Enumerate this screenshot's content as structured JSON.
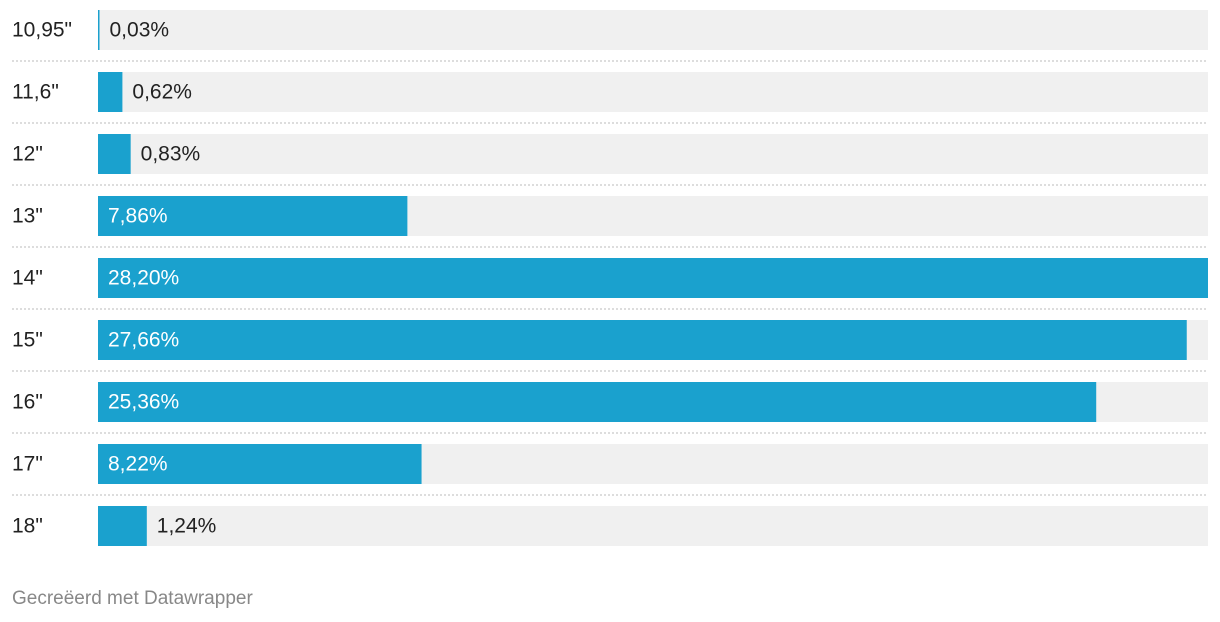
{
  "chart_data": {
    "type": "bar",
    "orientation": "horizontal",
    "categories": [
      "10,95\"",
      "11,6\"",
      "12\"",
      "13\"",
      "14\"",
      "15\"",
      "16\"",
      "17\"",
      "18\""
    ],
    "values": [
      0.03,
      0.62,
      0.83,
      7.86,
      28.2,
      27.66,
      25.36,
      8.22,
      1.24
    ],
    "value_labels": [
      "0,03%",
      "0,62%",
      "0,83%",
      "7,86%",
      "28,20%",
      "27,66%",
      "25,36%",
      "8,22%",
      "1,24%"
    ],
    "color": "#1aa1ce",
    "footer": "Gecreëerd met Datawrapper"
  }
}
